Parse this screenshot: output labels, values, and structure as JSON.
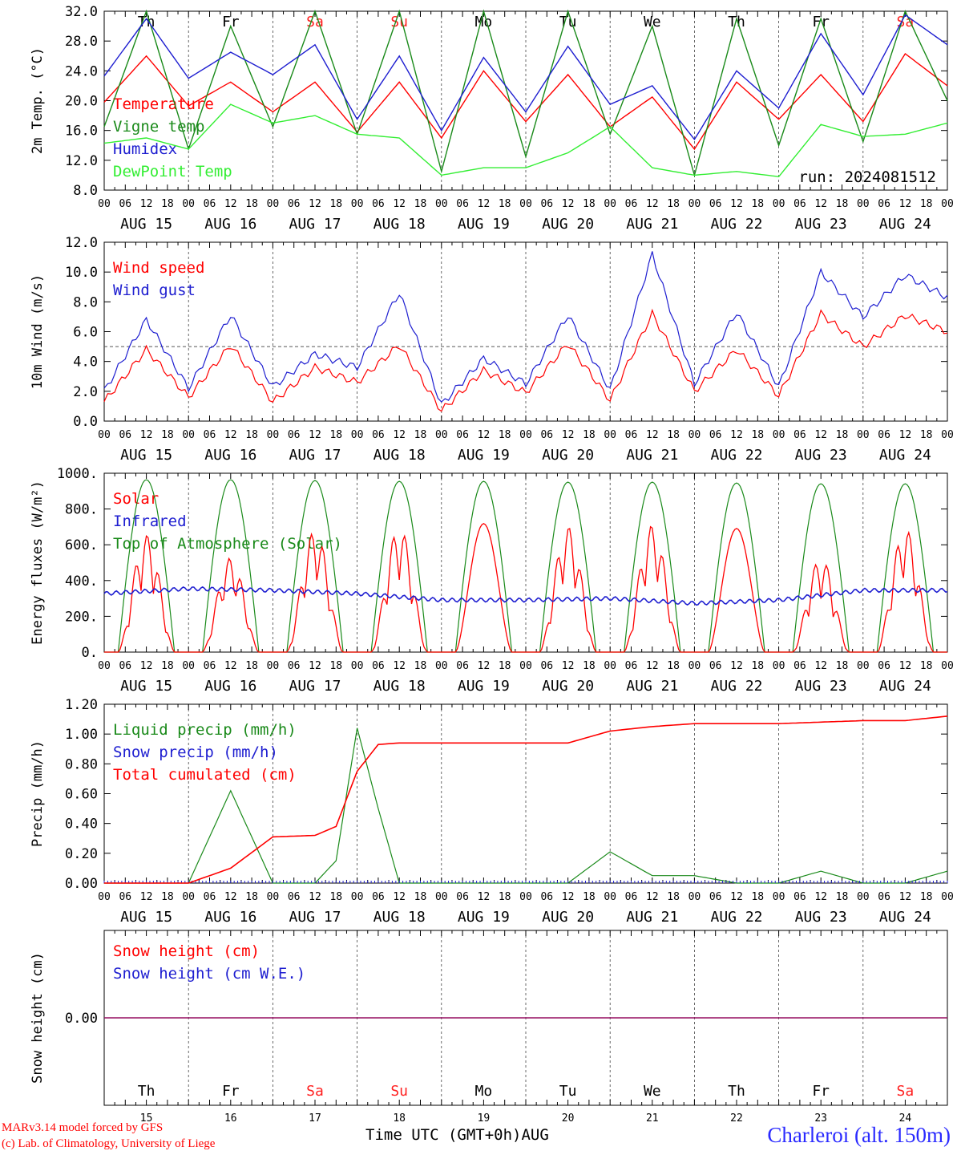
{
  "days": [
    "AUG 15",
    "AUG 16",
    "AUG 17",
    "AUG 18",
    "AUG 19",
    "AUG 20",
    "AUG 21",
    "AUG 22",
    "AUG 23",
    "AUG 24"
  ],
  "day_numbers": [
    "15",
    "16",
    "17",
    "18",
    "19",
    "20",
    "21",
    "22",
    "23",
    "24"
  ],
  "weekdays": [
    "Th",
    "Fr",
    "Sa",
    "Su",
    "Mo",
    "Tu",
    "We",
    "Th",
    "Fr",
    "Sa"
  ],
  "weekend_color": "#ff2020",
  "weekday_color": "#000000",
  "hour_ticks": [
    "00",
    "06",
    "12",
    "18"
  ],
  "footer": {
    "credit_line1": "MARv3.14 model forced by GFS",
    "credit_line2": "(c) Lab. of Climatology, University of Liege",
    "xaxis_title": "Time UTC (GMT+0h)AUG",
    "station": "Charleroi (alt. 150m)"
  },
  "chart_data": [
    {
      "type": "line",
      "ylabel": "2m Temp. (°C)",
      "ylim": [
        8,
        32
      ],
      "yticks": [
        "8.0",
        "12.0",
        "16.0",
        "20.0",
        "24.0",
        "28.0",
        "32.0"
      ],
      "annotation": "run: 2024081512",
      "x_hours": [
        0,
        12,
        24,
        36,
        48,
        60,
        72,
        84,
        96,
        108,
        120,
        132,
        144,
        156,
        168,
        180,
        192,
        204,
        216,
        228,
        240
      ],
      "series": [
        {
          "name": "Temperature",
          "color": "#ff0000",
          "values": [
            19.8,
            26.0,
            19.3,
            22.5,
            18.5,
            22.5,
            15.8,
            22.5,
            15.0,
            24.0,
            17.2,
            23.5,
            16.5,
            20.5,
            13.5,
            22.5,
            17.5,
            23.5,
            17.2,
            26.3,
            22.0
          ]
        },
        {
          "name": "Vigne temp",
          "color": "#1a8a1a",
          "values": [
            16.5,
            32.0,
            13.5,
            30.0,
            16.5,
            32.0,
            15.5,
            32.0,
            10.5,
            32.0,
            12.5,
            32.0,
            15.5,
            30.0,
            10.0,
            31.0,
            14.0,
            31.0,
            14.5,
            32.0,
            20.0
          ]
        },
        {
          "name": "Humidex",
          "color": "#1e1ed0",
          "values": [
            23.3,
            31.0,
            23.0,
            26.5,
            23.5,
            27.5,
            17.5,
            26.0,
            16.0,
            25.8,
            18.5,
            27.3,
            19.5,
            22.0,
            14.8,
            24.0,
            19.0,
            29.0,
            20.8,
            31.5,
            27.5
          ]
        },
        {
          "name": "DewPoint Temp",
          "color": "#33ee33",
          "values": [
            14.3,
            15.0,
            13.5,
            19.5,
            17.0,
            18.0,
            15.5,
            15.0,
            10.0,
            11.0,
            11.0,
            13.0,
            16.5,
            11.0,
            10.0,
            10.5,
            9.8,
            16.8,
            15.2,
            15.5,
            17.0
          ]
        }
      ]
    },
    {
      "type": "line",
      "ylabel": "10m Wind (m/s)",
      "ylim": [
        0,
        12
      ],
      "yticks": [
        "0.0",
        "2.0",
        "4.0",
        "6.0",
        "8.0",
        "10.0",
        "12.0"
      ],
      "reference_line": 5,
      "x_hours": [
        0,
        12,
        24,
        36,
        48,
        60,
        72,
        84,
        96,
        108,
        120,
        132,
        144,
        156,
        168,
        180,
        192,
        204,
        216,
        228,
        240
      ],
      "series": [
        {
          "name": "Wind speed",
          "color": "#ff0000",
          "values": [
            1.3,
            4.8,
            1.6,
            5.1,
            1.3,
            3.6,
            2.6,
            5.1,
            0.7,
            3.4,
            1.9,
            5.2,
            1.4,
            7.2,
            2.0,
            4.8,
            1.7,
            7.2,
            5.0,
            7.1,
            6.0
          ]
        },
        {
          "name": "Wind gust",
          "color": "#1e1ed0",
          "values": [
            2.0,
            6.8,
            2.2,
            7.1,
            2.3,
            4.5,
            3.6,
            8.6,
            1.1,
            4.2,
            2.5,
            7.1,
            2.1,
            11.2,
            2.5,
            7.3,
            2.3,
            10.0,
            7.0,
            9.8,
            8.3
          ]
        }
      ]
    },
    {
      "type": "line",
      "ylabel": "Energy fluxes (W/m²)",
      "ylim": [
        0,
        1100
      ],
      "yticks": [
        "0.",
        "200.",
        "400.",
        "600.",
        "800.",
        "1000."
      ],
      "x_hours": [
        0,
        4,
        8,
        12,
        16,
        20,
        24
      ],
      "daily_note": "each daily shape repeats every 24 h; peak values per day listed",
      "series": [
        {
          "name": "Solar",
          "color": "#ff0000",
          "daily_peaks": [
            720,
            580,
            750,
            770,
            790,
            770,
            780,
            760,
            580,
            760
          ]
        },
        {
          "name": "Infrared",
          "color": "#1e1ed0",
          "values_by_day": [
            360,
            390,
            380,
            360,
            320,
            320,
            330,
            300,
            320,
            380
          ]
        },
        {
          "name": "Top of Atmosphere (Solar)",
          "color": "#1a8a1a",
          "daily_peaks": [
            1060,
            1060,
            1055,
            1050,
            1050,
            1045,
            1045,
            1040,
            1035,
            1035
          ]
        }
      ]
    },
    {
      "type": "line",
      "ylabel": "Precip (mm/h)",
      "ylim": [
        0,
        1.2
      ],
      "yticks": [
        "0.00",
        "0.20",
        "0.40",
        "0.60",
        "0.80",
        "1.00",
        "1.20"
      ],
      "x_hours": [
        0,
        12,
        24,
        36,
        48,
        60,
        66,
        72,
        78,
        84,
        96,
        108,
        120,
        132,
        144,
        156,
        168,
        180,
        192,
        204,
        216,
        228,
        240
      ],
      "series": [
        {
          "name": "Liquid precip (mm/h)",
          "color": "#1a8a1a",
          "values": [
            0.0,
            0.0,
            0.0,
            0.62,
            0.0,
            0.0,
            0.15,
            1.04,
            0.5,
            0.0,
            0.0,
            0.0,
            0.0,
            0.0,
            0.21,
            0.05,
            0.05,
            0.0,
            0.0,
            0.08,
            0.0,
            0.0,
            0.08
          ]
        },
        {
          "name": "Snow precip (mm/h)",
          "color": "#1e1ed0",
          "values": [
            0,
            0,
            0,
            0,
            0,
            0,
            0,
            0,
            0,
            0,
            0,
            0,
            0,
            0,
            0,
            0,
            0,
            0,
            0,
            0,
            0,
            0,
            0
          ]
        },
        {
          "name": "Total cumulated (cm)",
          "color": "#ff0000",
          "values": [
            0.0,
            0.0,
            0.0,
            0.1,
            0.31,
            0.32,
            0.38,
            0.75,
            0.93,
            0.94,
            0.94,
            0.94,
            0.94,
            0.94,
            1.02,
            1.05,
            1.07,
            1.07,
            1.07,
            1.08,
            1.09,
            1.09,
            1.12
          ]
        }
      ]
    },
    {
      "type": "line",
      "ylabel": "Snow height (cm)",
      "ylim": [
        -1,
        1
      ],
      "yticks": [
        "0.00"
      ],
      "x_hours": [
        0,
        240
      ],
      "series": [
        {
          "name": "Snow height (cm)",
          "color": "#ff0000",
          "values": [
            0,
            0
          ]
        },
        {
          "name": "Snow height (cm W.E.)",
          "color": "#1e1ed0",
          "values": [
            0,
            0
          ]
        }
      ]
    }
  ]
}
